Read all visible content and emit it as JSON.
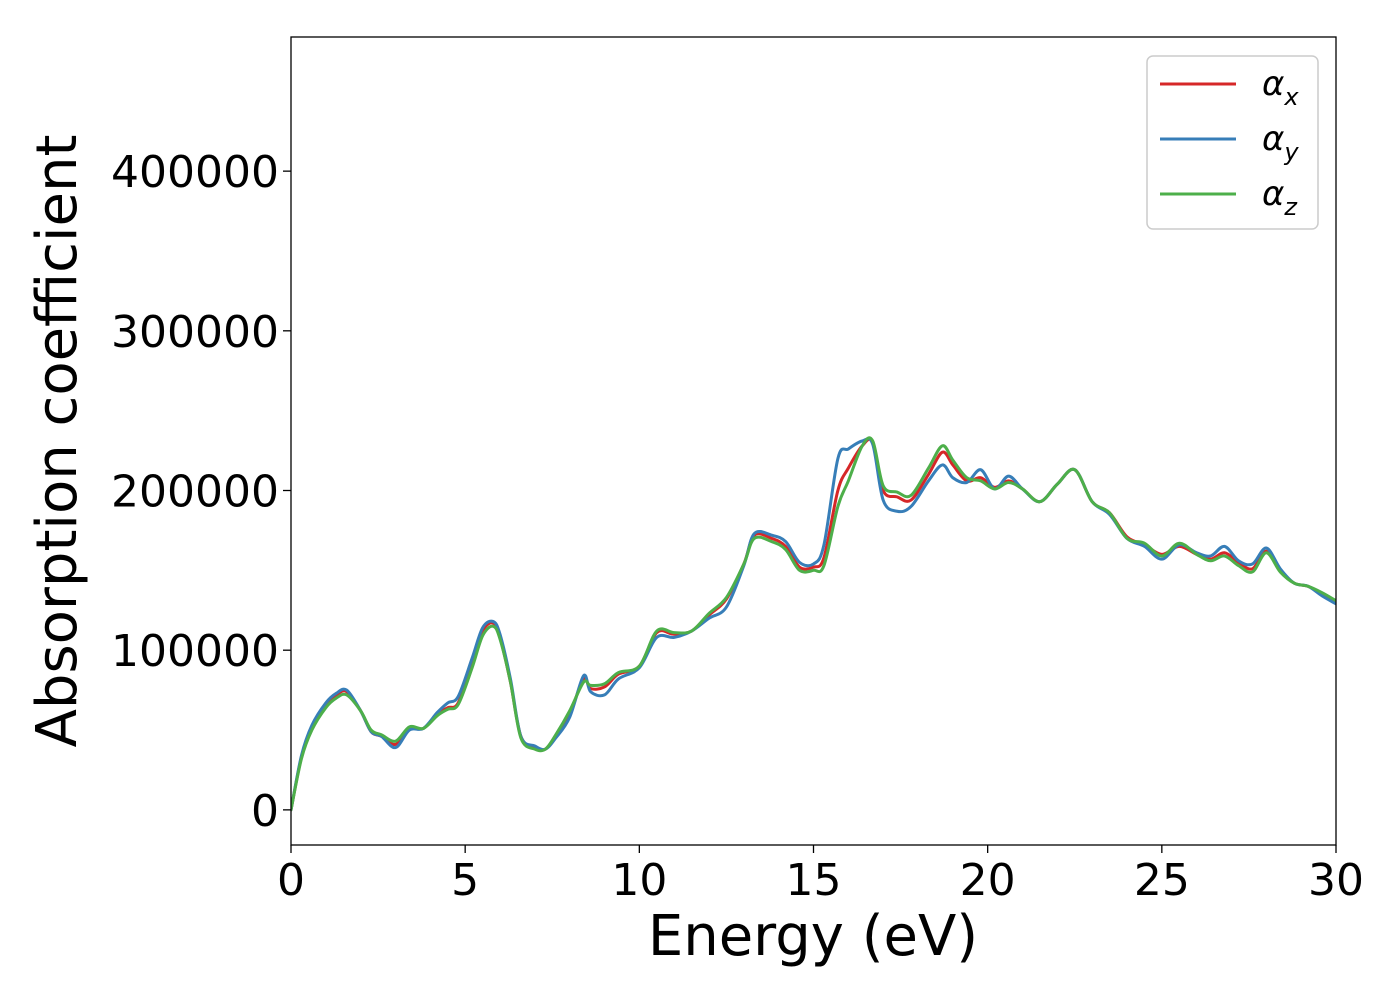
{
  "chart_data": {
    "type": "line",
    "xlabel": "Energy (eV)",
    "ylabel": "Absorption coefficient",
    "xlim": [
      0,
      30
    ],
    "ylim": [
      -22000,
      484000
    ],
    "xticks": [
      0,
      5,
      10,
      15,
      20,
      25,
      30
    ],
    "xtick_labels": [
      "0",
      "5",
      "10",
      "15",
      "20",
      "25",
      "30"
    ],
    "yticks": [
      0,
      100000,
      200000,
      300000,
      400000
    ],
    "ytick_labels": [
      "0",
      "100000",
      "200000",
      "300000",
      "400000"
    ],
    "grid": false,
    "legend_position": "top-right",
    "series": [
      {
        "name": "α_x",
        "legend_base": "α",
        "legend_sub": "x",
        "color": "#d62728",
        "x": [
          0,
          0.3,
          0.6,
          1.0,
          1.3,
          1.6,
          2.0,
          2.3,
          2.6,
          3.0,
          3.4,
          3.8,
          4.2,
          4.5,
          4.8,
          5.2,
          5.5,
          5.8,
          6.0,
          6.3,
          6.6,
          7.0,
          7.3,
          7.6,
          8.0,
          8.4,
          8.6,
          9.0,
          9.4,
          10.0,
          10.5,
          11.0,
          11.5,
          12.0,
          12.5,
          13.0,
          13.3,
          13.8,
          14.2,
          14.6,
          15.0,
          15.3,
          15.7,
          16.0,
          16.4,
          16.7,
          17.0,
          17.4,
          17.8,
          18.3,
          18.7,
          19.0,
          19.4,
          19.8,
          20.2,
          20.6,
          21.0,
          21.5,
          22.0,
          22.5,
          23.0,
          23.5,
          24.0,
          24.5,
          25.0,
          25.5,
          26.0,
          26.4,
          26.8,
          27.2,
          27.6,
          28.0,
          28.4,
          28.8,
          29.2,
          29.6,
          30.0
        ],
        "y": [
          0,
          33000,
          52000,
          66000,
          72000,
          74000,
          62000,
          49000,
          46000,
          41000,
          51000,
          51000,
          60000,
          64000,
          67000,
          92000,
          112000,
          117000,
          108000,
          80000,
          46000,
          39000,
          38000,
          46000,
          60000,
          82000,
          76000,
          77000,
          85000,
          90000,
          111000,
          110000,
          112000,
          122000,
          132000,
          154000,
          172000,
          170000,
          165000,
          152000,
          152000,
          158000,
          200000,
          214000,
          228000,
          230000,
          200000,
          196000,
          194000,
          210000,
          224000,
          216000,
          206000,
          208000,
          202000,
          206000,
          201000,
          193000,
          204000,
          213000,
          193000,
          186000,
          171000,
          166000,
          160000,
          165000,
          160000,
          157000,
          161000,
          155000,
          151000,
          162000,
          150000,
          142000,
          140000,
          135000,
          130000
        ]
      },
      {
        "name": "α_y",
        "legend_base": "α",
        "legend_sub": "y",
        "color": "#377eb8",
        "x": [
          0,
          0.3,
          0.6,
          1.0,
          1.3,
          1.6,
          2.0,
          2.3,
          2.6,
          3.0,
          3.4,
          3.8,
          4.2,
          4.5,
          4.8,
          5.2,
          5.5,
          5.8,
          6.0,
          6.3,
          6.6,
          7.0,
          7.3,
          7.6,
          8.0,
          8.4,
          8.6,
          9.0,
          9.4,
          10.0,
          10.5,
          11.0,
          11.5,
          12.0,
          12.5,
          13.0,
          13.3,
          13.8,
          14.2,
          14.6,
          15.0,
          15.3,
          15.7,
          16.0,
          16.4,
          16.7,
          17.0,
          17.4,
          17.8,
          18.3,
          18.7,
          19.0,
          19.4,
          19.8,
          20.2,
          20.6,
          21.0,
          21.5,
          22.0,
          22.5,
          23.0,
          23.5,
          24.0,
          24.5,
          25.0,
          25.5,
          26.0,
          26.4,
          26.8,
          27.2,
          27.6,
          28.0,
          28.4,
          28.8,
          29.2,
          29.6,
          30.0
        ],
        "y": [
          0,
          34000,
          53000,
          67000,
          73000,
          75000,
          62000,
          49000,
          46000,
          39000,
          50000,
          51000,
          61000,
          67000,
          71000,
          95000,
          114000,
          118000,
          110000,
          82000,
          46000,
          40000,
          38000,
          45000,
          58000,
          84000,
          74000,
          72000,
          82000,
          89000,
          108000,
          108000,
          112000,
          120000,
          127000,
          153000,
          173000,
          172000,
          168000,
          155000,
          154000,
          166000,
          220000,
          226000,
          231000,
          229000,
          194000,
          187000,
          190000,
          206000,
          216000,
          208000,
          205000,
          213000,
          201000,
          209000,
          201000,
          193000,
          204000,
          213000,
          193000,
          185000,
          170000,
          165000,
          157000,
          166000,
          161000,
          159000,
          165000,
          156000,
          154000,
          164000,
          151000,
          142000,
          140000,
          134000,
          129000
        ]
      },
      {
        "name": "α_z",
        "legend_base": "α",
        "legend_sub": "z",
        "color": "#4daf4a",
        "x": [
          0,
          0.3,
          0.6,
          1.0,
          1.3,
          1.6,
          2.0,
          2.3,
          2.6,
          3.0,
          3.4,
          3.8,
          4.2,
          4.5,
          4.8,
          5.2,
          5.5,
          5.8,
          6.0,
          6.3,
          6.6,
          7.0,
          7.3,
          7.6,
          8.0,
          8.4,
          8.6,
          9.0,
          9.4,
          10.0,
          10.5,
          11.0,
          11.5,
          12.0,
          12.5,
          13.0,
          13.3,
          13.8,
          14.2,
          14.6,
          15.0,
          15.3,
          15.7,
          16.0,
          16.4,
          16.7,
          17.0,
          17.4,
          17.8,
          18.3,
          18.7,
          19.0,
          19.4,
          19.8,
          20.2,
          20.6,
          21.0,
          21.5,
          22.0,
          22.5,
          23.0,
          23.5,
          24.0,
          24.5,
          25.0,
          25.5,
          26.0,
          26.4,
          26.8,
          27.2,
          27.6,
          28.0,
          28.4,
          28.8,
          29.2,
          29.6,
          30.0
        ],
        "y": [
          0,
          32000,
          50000,
          64000,
          70000,
          72000,
          62000,
          50000,
          47000,
          43000,
          52000,
          51000,
          59000,
          63000,
          66000,
          89000,
          109000,
          115000,
          107000,
          80000,
          45000,
          38000,
          38000,
          47000,
          62000,
          80000,
          78000,
          79000,
          86000,
          90000,
          112000,
          111000,
          112000,
          123000,
          133000,
          154000,
          170000,
          168000,
          163000,
          150000,
          150000,
          153000,
          190000,
          206000,
          228000,
          231000,
          203000,
          199000,
          197000,
          214000,
          228000,
          219000,
          208000,
          206000,
          201000,
          205000,
          201000,
          193000,
          204000,
          213000,
          193000,
          186000,
          170000,
          167000,
          159000,
          167000,
          160000,
          156000,
          159000,
          153000,
          149000,
          161000,
          149000,
          142000,
          140000,
          136000,
          131000
        ]
      }
    ]
  }
}
